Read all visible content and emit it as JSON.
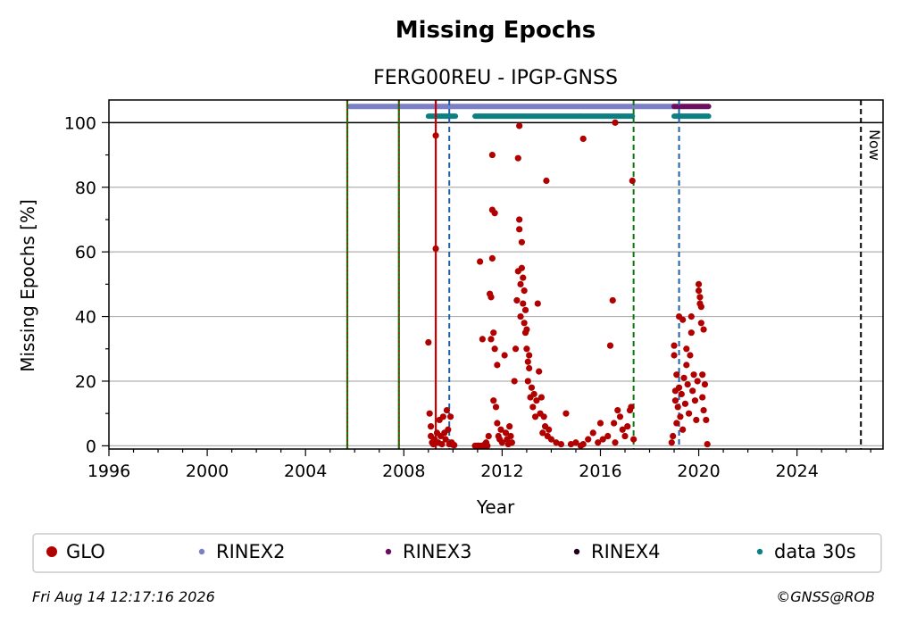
{
  "chart_data": {
    "type": "scatter",
    "title": "Missing Epochs",
    "subtitle": "FERG00REU - IPGP-GNSS",
    "xlabel": "Year",
    "ylabel": "Missing Epochs [%]",
    "xlim": [
      1996,
      2027.5
    ],
    "ylim": [
      -1,
      107
    ],
    "x_ticks": [
      1996,
      2000,
      2004,
      2008,
      2012,
      2016,
      2020,
      2024
    ],
    "y_ticks": [
      0,
      20,
      40,
      60,
      80,
      100
    ],
    "grid": "horizontal",
    "now_label": "Now",
    "now_x": 2026.6,
    "legend_position": "bottom",
    "colors": {
      "GLO": "#b00000",
      "RINEX2": "#7b7fc4",
      "RINEX3": "#6b0e5e",
      "RINEX4": "#220022",
      "data30s": "#0b7f82",
      "event_green": "#0a7a0a",
      "event_red": "#cc0000",
      "event_blue": "#1f5fa8"
    },
    "legend": [
      {
        "label": "GLO",
        "key": "GLO"
      },
      {
        "label": "RINEX2",
        "key": "RINEX2"
      },
      {
        "label": "RINEX3",
        "key": "RINEX3"
      },
      {
        "label": "RINEX4",
        "key": "RINEX4"
      },
      {
        "label": "data 30s",
        "key": "data30s"
      }
    ],
    "availability_bars": [
      {
        "series": "RINEX2",
        "y": 105,
        "segments": [
          [
            2005.8,
            2019.0
          ]
        ]
      },
      {
        "series": "RINEX3",
        "y": 105,
        "segments": [
          [
            2019.0,
            2020.4
          ]
        ]
      },
      {
        "series": "data30s",
        "y": 102,
        "segments": [
          [
            2009.0,
            2010.1
          ],
          [
            2010.9,
            2015.2
          ],
          [
            2015.2,
            2017.3
          ],
          [
            2019.0,
            2020.4
          ]
        ]
      }
    ],
    "event_lines": [
      {
        "x": 2005.7,
        "style": "green-red-dotted"
      },
      {
        "x": 2007.8,
        "style": "green-red-dotted"
      },
      {
        "x": 2009.3,
        "style": "red-solid"
      },
      {
        "x": 2009.85,
        "style": "blue-dashed"
      },
      {
        "x": 2017.35,
        "style": "green-dashed"
      },
      {
        "x": 2019.2,
        "style": "blue-dashed"
      }
    ],
    "series": [
      {
        "name": "GLO",
        "points": [
          [
            2009.0,
            32
          ],
          [
            2009.05,
            10
          ],
          [
            2009.1,
            6
          ],
          [
            2009.1,
            3
          ],
          [
            2009.15,
            1
          ],
          [
            2009.2,
            0.5
          ],
          [
            2009.25,
            2
          ],
          [
            2009.3,
            96
          ],
          [
            2009.3,
            61
          ],
          [
            2009.35,
            4
          ],
          [
            2009.4,
            1
          ],
          [
            2009.45,
            8
          ],
          [
            2009.5,
            3
          ],
          [
            2009.55,
            0.5
          ],
          [
            2009.6,
            9
          ],
          [
            2009.65,
            4
          ],
          [
            2009.7,
            2
          ],
          [
            2009.75,
            11
          ],
          [
            2009.8,
            5
          ],
          [
            2009.85,
            0.5
          ],
          [
            2009.9,
            9
          ],
          [
            2009.95,
            1
          ],
          [
            2010.0,
            0.3
          ],
          [
            2010.05,
            0.2
          ],
          [
            2010.9,
            0
          ],
          [
            2011.0,
            0
          ],
          [
            2011.05,
            0
          ],
          [
            2011.1,
            57
          ],
          [
            2011.15,
            0
          ],
          [
            2011.2,
            33
          ],
          [
            2011.25,
            0
          ],
          [
            2011.3,
            0.5
          ],
          [
            2011.35,
            1
          ],
          [
            2011.4,
            0
          ],
          [
            2011.45,
            3
          ],
          [
            2011.5,
            47
          ],
          [
            2011.55,
            46
          ],
          [
            2011.55,
            33
          ],
          [
            2011.6,
            90
          ],
          [
            2011.6,
            73
          ],
          [
            2011.6,
            58
          ],
          [
            2011.65,
            35
          ],
          [
            2011.65,
            14
          ],
          [
            2011.7,
            72
          ],
          [
            2011.7,
            30
          ],
          [
            2011.75,
            12
          ],
          [
            2011.8,
            7
          ],
          [
            2011.8,
            25
          ],
          [
            2011.85,
            3
          ],
          [
            2011.9,
            2
          ],
          [
            2011.95,
            5
          ],
          [
            2012.0,
            1
          ],
          [
            2012.1,
            28
          ],
          [
            2012.15,
            4
          ],
          [
            2012.2,
            2
          ],
          [
            2012.25,
            0.5
          ],
          [
            2012.3,
            6
          ],
          [
            2012.35,
            3
          ],
          [
            2012.4,
            1
          ],
          [
            2012.5,
            20
          ],
          [
            2012.55,
            30
          ],
          [
            2012.6,
            45
          ],
          [
            2012.65,
            89
          ],
          [
            2012.65,
            54
          ],
          [
            2012.7,
            99
          ],
          [
            2012.7,
            70
          ],
          [
            2012.7,
            67
          ],
          [
            2012.75,
            50
          ],
          [
            2012.75,
            40
          ],
          [
            2012.8,
            63
          ],
          [
            2012.8,
            55
          ],
          [
            2012.85,
            52
          ],
          [
            2012.85,
            44
          ],
          [
            2012.9,
            48
          ],
          [
            2012.9,
            38
          ],
          [
            2012.95,
            42
          ],
          [
            2012.95,
            35
          ],
          [
            2013.0,
            36
          ],
          [
            2013.0,
            30
          ],
          [
            2013.05,
            26
          ],
          [
            2013.05,
            20
          ],
          [
            2013.1,
            28
          ],
          [
            2013.1,
            24
          ],
          [
            2013.15,
            15
          ],
          [
            2013.2,
            18
          ],
          [
            2013.25,
            12
          ],
          [
            2013.3,
            16
          ],
          [
            2013.35,
            9
          ],
          [
            2013.4,
            14
          ],
          [
            2013.45,
            44
          ],
          [
            2013.5,
            23
          ],
          [
            2013.55,
            10
          ],
          [
            2013.6,
            15
          ],
          [
            2013.65,
            4
          ],
          [
            2013.7,
            9
          ],
          [
            2013.75,
            6
          ],
          [
            2013.8,
            82
          ],
          [
            2013.85,
            3
          ],
          [
            2013.9,
            5
          ],
          [
            2014.0,
            2
          ],
          [
            2014.2,
            1
          ],
          [
            2014.4,
            0.5
          ],
          [
            2014.6,
            10
          ],
          [
            2014.8,
            0.5
          ],
          [
            2015.0,
            1
          ],
          [
            2015.2,
            0
          ],
          [
            2015.3,
            95
          ],
          [
            2015.3,
            0.5
          ],
          [
            2015.5,
            2
          ],
          [
            2015.7,
            4
          ],
          [
            2015.9,
            1
          ],
          [
            2016.0,
            7
          ],
          [
            2016.1,
            2
          ],
          [
            2016.3,
            3
          ],
          [
            2016.4,
            31
          ],
          [
            2016.5,
            45
          ],
          [
            2016.55,
            7
          ],
          [
            2016.6,
            100
          ],
          [
            2016.6,
            1
          ],
          [
            2016.7,
            11
          ],
          [
            2016.8,
            9
          ],
          [
            2016.9,
            5
          ],
          [
            2017.0,
            3
          ],
          [
            2017.1,
            6
          ],
          [
            2017.2,
            11
          ],
          [
            2017.25,
            12
          ],
          [
            2017.3,
            82
          ],
          [
            2017.35,
            2
          ],
          [
            2018.9,
            1
          ],
          [
            2018.95,
            3
          ],
          [
            2019.0,
            31
          ],
          [
            2019.0,
            28
          ],
          [
            2019.05,
            17
          ],
          [
            2019.05,
            14
          ],
          [
            2019.1,
            7
          ],
          [
            2019.1,
            22
          ],
          [
            2019.15,
            12
          ],
          [
            2019.2,
            40
          ],
          [
            2019.2,
            18
          ],
          [
            2019.25,
            9
          ],
          [
            2019.3,
            16
          ],
          [
            2019.35,
            39
          ],
          [
            2019.35,
            5
          ],
          [
            2019.4,
            21
          ],
          [
            2019.45,
            13
          ],
          [
            2019.5,
            30
          ],
          [
            2019.5,
            25
          ],
          [
            2019.55,
            19
          ],
          [
            2019.6,
            10
          ],
          [
            2019.65,
            28
          ],
          [
            2019.7,
            40
          ],
          [
            2019.7,
            35
          ],
          [
            2019.75,
            17
          ],
          [
            2019.8,
            22
          ],
          [
            2019.85,
            14
          ],
          [
            2019.9,
            8
          ],
          [
            2019.95,
            20
          ],
          [
            2020.0,
            50
          ],
          [
            2020.0,
            48
          ],
          [
            2020.05,
            46
          ],
          [
            2020.05,
            44
          ],
          [
            2020.1,
            43
          ],
          [
            2020.1,
            38
          ],
          [
            2020.15,
            22
          ],
          [
            2020.15,
            15
          ],
          [
            2020.2,
            11
          ],
          [
            2020.2,
            36
          ],
          [
            2020.25,
            19
          ],
          [
            2020.3,
            8
          ],
          [
            2020.35,
            0.5
          ]
        ]
      }
    ]
  },
  "footer": {
    "timestamp": "Fri Aug 14 12:17:16 2026",
    "credit": "©GNSS@ROB"
  }
}
